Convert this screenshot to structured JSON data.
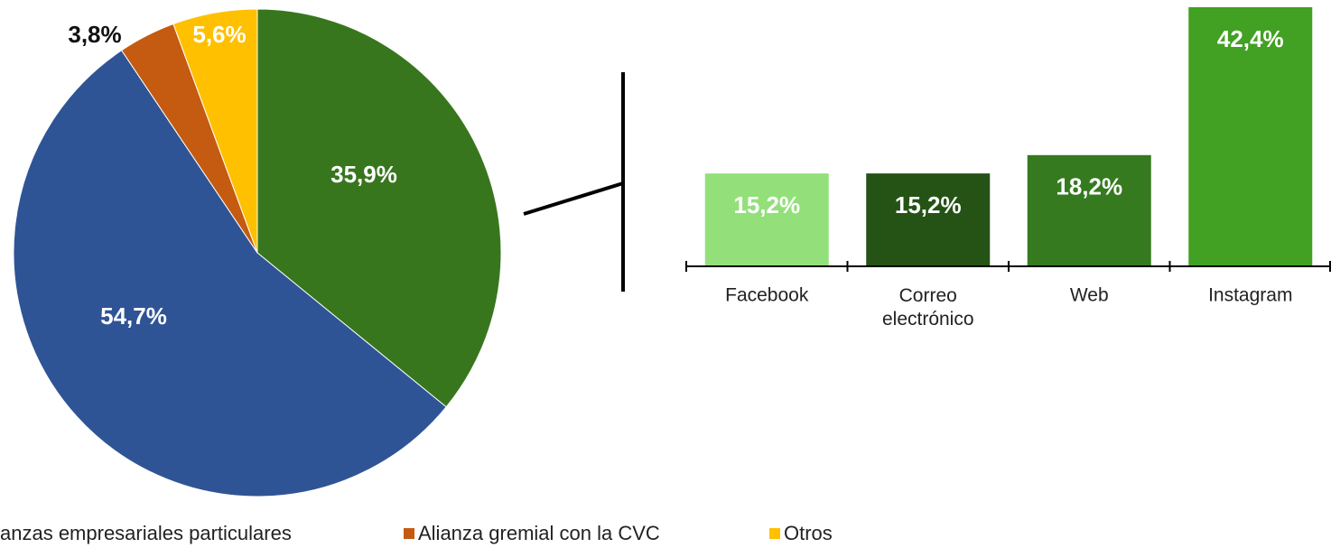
{
  "chart_data": [
    {
      "type": "pie",
      "categories": [
        null,
        "anzas empresariales particulares",
        "Alianza gremial con la CVC",
        "Otros"
      ],
      "values": [
        35.9,
        54.7,
        3.8,
        5.6
      ],
      "value_labels": [
        "35,9%",
        "54,7%",
        "3,8%",
        "5,6%"
      ],
      "colors": [
        "#38761d",
        "#2f5496",
        "#c55a11",
        "#ffc000"
      ]
    },
    {
      "type": "bar",
      "categories": [
        "Facebook",
        "Correo electrónico",
        "Web",
        "Instagram"
      ],
      "values": [
        15.2,
        15.2,
        18.2,
        42.4
      ],
      "value_labels": [
        "15,2%",
        "15,2%",
        "18,2%",
        "42,4%"
      ],
      "colors": [
        "#93e07b",
        "#245315",
        "#357a1f",
        "#42a023"
      ]
    }
  ]
}
